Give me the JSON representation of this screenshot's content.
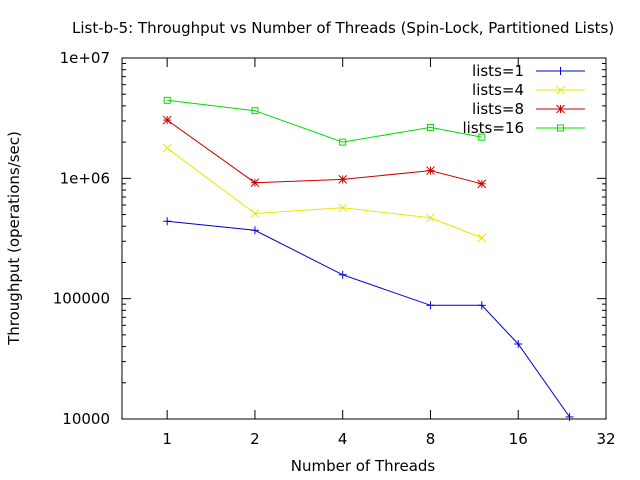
{
  "chart_data": {
    "type": "line",
    "title": "List-b-5: Throughput vs Number of Threads (Spin-Lock, Partitioned Lists)",
    "xlabel": "Number of Threads",
    "ylabel": "Throughput (operations/sec)",
    "x_scale": "log2",
    "y_scale": "log10",
    "xlim": [
      0.7,
      32
    ],
    "ylim": [
      10000,
      10000000
    ],
    "x_ticks": [
      1,
      2,
      4,
      8,
      16,
      32
    ],
    "x_tick_labels": [
      "1",
      "2",
      "4",
      "8",
      "16",
      "32"
    ],
    "y_ticks": [
      10000,
      100000,
      1000000,
      10000000
    ],
    "y_tick_labels": [
      "10000",
      "100000",
      "1e+06",
      "1e+07"
    ],
    "grid": false,
    "legend_position": "top-right",
    "series": [
      {
        "name": "lists=1",
        "color": "#0000c8",
        "marker": "plus",
        "x": [
          1,
          2,
          4,
          8,
          12,
          16,
          24
        ],
        "y": [
          440000,
          370000,
          158000,
          88000,
          88000,
          42000,
          10400
        ]
      },
      {
        "name": "lists=4",
        "color": "#e8e800",
        "marker": "cross",
        "x": [
          1,
          2,
          4,
          8,
          12
        ],
        "y": [
          1780000,
          510000,
          570000,
          470000,
          320000
        ]
      },
      {
        "name": "lists=8",
        "color": "#c80000",
        "marker": "star",
        "x": [
          1,
          2,
          4,
          8,
          12
        ],
        "y": [
          3050000,
          920000,
          980000,
          1160000,
          900000
        ]
      },
      {
        "name": "lists=16",
        "color": "#00dd00",
        "marker": "square",
        "x": [
          1,
          2,
          4,
          8,
          12
        ],
        "y": [
          4450000,
          3650000,
          2000000,
          2650000,
          2200000
        ]
      }
    ]
  }
}
